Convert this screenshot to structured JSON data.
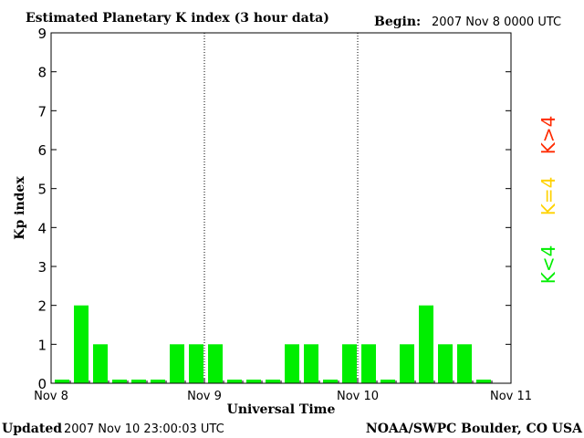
{
  "header": {
    "title": "Estimated Planetary K index (3 hour data)",
    "begin_label": "Begin:",
    "begin_value": "2007 Nov 8 0000 UTC"
  },
  "footer": {
    "updated_label": "Updated",
    "updated_value": "2007 Nov 10 23:00:03 UTC",
    "source": "NOAA/SWPC Boulder, CO USA"
  },
  "legend": [
    {
      "label": "K<4",
      "color": "#00ee00"
    },
    {
      "label": "K=4",
      "color": "#ffd200"
    },
    {
      "label": "K>4",
      "color": "#ff2a00"
    }
  ],
  "chart_data": {
    "type": "bar",
    "title": "Estimated Planetary K index (3 hour data)",
    "xlabel": "Universal Time",
    "ylabel": "Kp index",
    "ylim": [
      0,
      9
    ],
    "yticks": [
      "0",
      "1",
      "2",
      "3",
      "4",
      "5",
      "6",
      "7",
      "8",
      "9"
    ],
    "xticks": [
      "Nov 8",
      "Nov 9",
      "Nov 10",
      "Nov 11"
    ],
    "day_separators_after_bin": [
      8,
      16
    ],
    "interval": "3 hour",
    "values": [
      0,
      2,
      1,
      0,
      0,
      0,
      1,
      1,
      1,
      0,
      0,
      0,
      1,
      1,
      0,
      1,
      1,
      0,
      1,
      2,
      1,
      1,
      0
    ],
    "bar_color": "#00ee00"
  }
}
